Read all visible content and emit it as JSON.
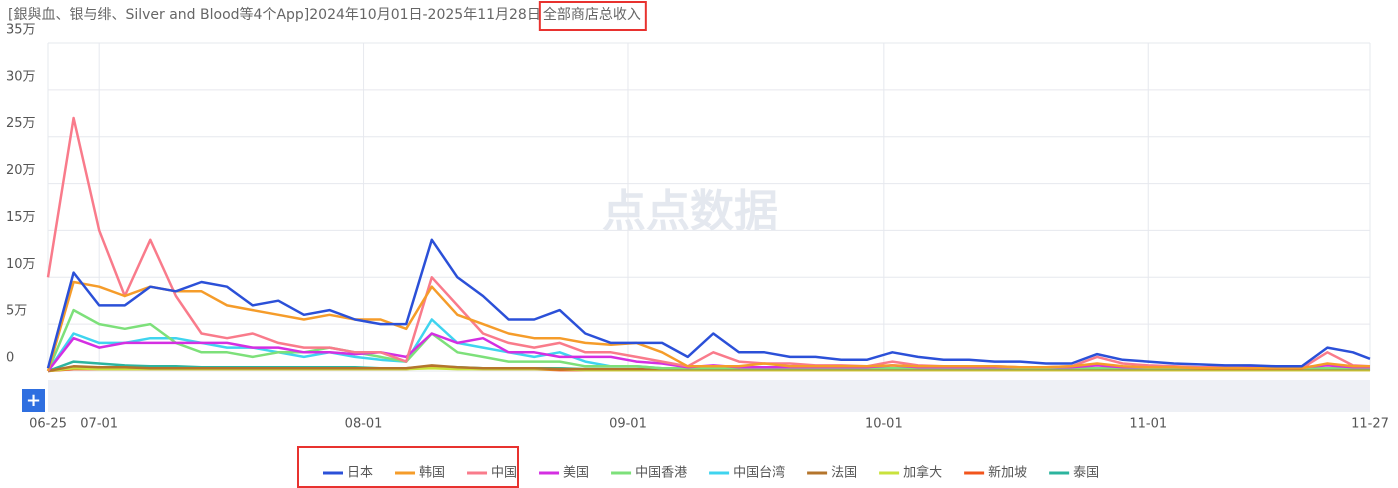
{
  "chart_data": {
    "type": "line",
    "title": "[銀與血、银与绯、Silver and Blood等4个App]2024年10月01日-2025年11月28日",
    "metric": "全部商店总收入",
    "watermark": "点点数据",
    "x": [
      0,
      3,
      6,
      9,
      12,
      15,
      18,
      21,
      24,
      27,
      30,
      33,
      36,
      39,
      42,
      45,
      48,
      51,
      54,
      57,
      60,
      63,
      66,
      69,
      72,
      75,
      78,
      81,
      84,
      87,
      90,
      93,
      96,
      99,
      102,
      105,
      108,
      111,
      114,
      117,
      120,
      123,
      126,
      129,
      132,
      135,
      138,
      141,
      144,
      147,
      150,
      153,
      155
    ],
    "xlim": [
      0,
      155
    ],
    "xticks": [
      {
        "value": 0,
        "label": "06-25"
      },
      {
        "value": 6,
        "label": "07-01"
      },
      {
        "value": 37,
        "label": "08-01"
      },
      {
        "value": 68,
        "label": "09-01"
      },
      {
        "value": 98,
        "label": "10-01"
      },
      {
        "value": 129,
        "label": "11-01"
      },
      {
        "value": 155,
        "label": "11-27"
      }
    ],
    "ylim": [
      0,
      35
    ],
    "yticks": [
      0,
      {
        "value": 5,
        "label": "5万"
      },
      {
        "value": 10,
        "label": "10万"
      },
      {
        "value": 15,
        "label": "15万"
      },
      {
        "value": 20,
        "label": "20万"
      },
      {
        "value": 25,
        "label": "25万"
      },
      {
        "value": 30,
        "label": "30万"
      },
      {
        "value": 35,
        "label": "35万"
      }
    ],
    "grid": true,
    "series": [
      {
        "name": "日本",
        "color": "#2b50d8",
        "values": [
          0.3,
          10.5,
          7,
          7,
          9,
          8.5,
          9.5,
          9,
          7,
          7.5,
          6,
          6.5,
          5.5,
          5,
          5,
          14,
          10,
          8,
          5.5,
          5.5,
          6.5,
          4,
          3,
          3,
          3,
          1.5,
          4,
          2,
          2,
          1.5,
          1.5,
          1.2,
          1.2,
          2,
          1.5,
          1.2,
          1.2,
          1,
          1,
          0.8,
          0.8,
          1.8,
          1.2,
          1,
          0.8,
          0.7,
          0.6,
          0.6,
          0.5,
          0.5,
          2.5,
          2,
          1.3
        ]
      },
      {
        "name": "韩国",
        "color": "#f59c2a",
        "values": [
          0,
          9.5,
          9,
          8,
          9,
          8.5,
          8.5,
          7,
          6.5,
          6,
          5.5,
          6,
          5.5,
          5.5,
          4.5,
          9,
          6,
          5,
          4,
          3.5,
          3.5,
          3,
          2.8,
          3,
          2,
          0.5,
          0.5,
          0.5,
          0.8,
          0.5,
          0.5,
          0.5,
          0.5,
          0.6,
          0.5,
          0.5,
          0.5,
          0.5,
          0.4,
          0.4,
          0.5,
          0.8,
          0.5,
          0.4,
          0.4,
          0.3,
          0.3,
          0.3,
          0.3,
          0.3,
          0.8,
          0.5,
          0.5
        ]
      },
      {
        "name": "中国",
        "color": "#f97b8b",
        "values": [
          10,
          27,
          15,
          8,
          14,
          8,
          4,
          3.5,
          4,
          3,
          2.5,
          2.5,
          2,
          2,
          1,
          10,
          7,
          4,
          3,
          2.5,
          3,
          2,
          2,
          1.5,
          1,
          0.5,
          2,
          1,
          0.8,
          0.8,
          0.6,
          0.6,
          0.5,
          1,
          0.6,
          0.5,
          0.5,
          0.5,
          0.4,
          0.4,
          0.5,
          1.5,
          0.8,
          0.6,
          0.5,
          0.4,
          0.4,
          0.3,
          0.3,
          0.3,
          2,
          0.6,
          0.5
        ]
      },
      {
        "name": "美国",
        "color": "#d42fe2",
        "values": [
          0,
          3.5,
          2.5,
          3,
          3,
          3,
          3,
          3,
          2.5,
          2.5,
          2,
          2,
          1.8,
          2,
          1.5,
          4,
          3,
          3.5,
          2,
          2,
          1.5,
          1.5,
          1.5,
          1,
          0.8,
          0.4,
          0.6,
          0.4,
          0.4,
          0.4,
          0.4,
          0.4,
          0.4,
          0.6,
          0.4,
          0.4,
          0.4,
          0.4,
          0.4,
          0.4,
          0.4,
          0.6,
          0.4,
          0.4,
          0.4,
          0.4,
          0.4,
          0.4,
          0.4,
          0.4,
          0.6,
          0.4,
          0.4
        ]
      },
      {
        "name": "中国香港",
        "color": "#7de07a",
        "values": [
          0,
          6.5,
          5,
          4.5,
          5,
          3,
          2,
          2,
          1.5,
          2,
          2,
          2.5,
          2,
          1.5,
          1,
          4,
          2,
          1.5,
          1,
          1,
          1,
          0.5,
          0.5,
          0.5,
          0.3,
          0.3,
          0.3,
          0.3,
          0.3,
          0.3,
          0.3,
          0.3,
          0.3,
          0.3,
          0.3,
          0.3,
          0.3,
          0.3,
          0.3,
          0.3,
          0.3,
          0.3,
          0.3,
          0.3,
          0.3,
          0.3,
          0.3,
          0.3,
          0.3,
          0.3,
          0.3,
          0.3,
          0.3
        ]
      },
      {
        "name": "中国台湾",
        "color": "#3fd4ef",
        "values": [
          0,
          4,
          3,
          3,
          3.5,
          3.5,
          3,
          2.5,
          2.5,
          2,
          1.5,
          2,
          1.5,
          1.2,
          1,
          5.5,
          3,
          2.5,
          2,
          1.5,
          2,
          1,
          0.5,
          0.5,
          0.3,
          0.3,
          0.3,
          0.3,
          0.3,
          0.3,
          0.3,
          0.3,
          0.3,
          0.3,
          0.3,
          0.3,
          0.3,
          0.3,
          0.3,
          0.3,
          0.3,
          0.3,
          0.3,
          0.3,
          0.3,
          0.3,
          0.3,
          0.3,
          0.3,
          0.3,
          0.3,
          0.3,
          0.3
        ]
      },
      {
        "name": "法国",
        "color": "#b4752c",
        "values": [
          0,
          0.5,
          0.4,
          0.4,
          0.3,
          0.3,
          0.3,
          0.3,
          0.3,
          0.3,
          0.3,
          0.3,
          0.3,
          0.3,
          0.3,
          0.6,
          0.4,
          0.3,
          0.3,
          0.3,
          0.2,
          0.2,
          0.2,
          0.2,
          0.2,
          0.2,
          0.2,
          0.2,
          0.2,
          0.2,
          0.2,
          0.2,
          0.2,
          0.2,
          0.2,
          0.2,
          0.2,
          0.2,
          0.2,
          0.2,
          0.2,
          0.2,
          0.2,
          0.2,
          0.2,
          0.2,
          0.2,
          0.2,
          0.2,
          0.2,
          0.2,
          0.2,
          0.2
        ]
      },
      {
        "name": "加拿大",
        "color": "#c9e23c",
        "values": [
          0,
          0.3,
          0.2,
          0.2,
          0.2,
          0.2,
          0.2,
          0.2,
          0.2,
          0.2,
          0.2,
          0.2,
          0.2,
          0.2,
          0.2,
          0.3,
          0.2,
          0.2,
          0.2,
          0.2,
          0.2,
          0.1,
          0.1,
          0.1,
          0.1,
          0.1,
          0.1,
          0.1,
          0.1,
          0.1,
          0.1,
          0.1,
          0.1,
          0.1,
          0.1,
          0.1,
          0.1,
          0.1,
          0.1,
          0.1,
          0.1,
          0.1,
          0.1,
          0.1,
          0.1,
          0.1,
          0.1,
          0.1,
          0.1,
          0.1,
          0.1,
          0.1,
          0.1
        ]
      },
      {
        "name": "新加坡",
        "color": "#f2551c",
        "values": [
          0,
          0.2,
          0.2,
          0.2,
          0.2,
          0.2,
          0.2,
          0.2,
          0.2,
          0.2,
          0.2,
          0.2,
          0.2,
          0.2,
          0.2,
          0.5,
          0.3,
          0.2,
          0.2,
          0.2,
          0.1,
          0.1,
          0.1,
          0.1,
          0.1,
          0.1,
          0.1,
          0.1,
          0.1,
          0.1,
          0.1,
          0.1,
          0.1,
          0.1,
          0.1,
          0.1,
          0.1,
          0.1,
          0.1,
          0.1,
          0.1,
          0.1,
          0.1,
          0.1,
          0.1,
          0.1,
          0.1,
          0.1,
          0.1,
          0.1,
          0.1,
          0.1,
          0.1
        ]
      },
      {
        "name": "泰国",
        "color": "#2cb49e",
        "values": [
          0,
          1,
          0.8,
          0.6,
          0.5,
          0.5,
          0.4,
          0.4,
          0.4,
          0.4,
          0.4,
          0.4,
          0.4,
          0.3,
          0.3,
          0.5,
          0.4,
          0.3,
          0.3,
          0.3,
          0.3,
          0.2,
          0.2,
          0.2,
          0.2,
          0.2,
          0.2,
          0.2,
          0.2,
          0.2,
          0.2,
          0.2,
          0.2,
          0.2,
          0.2,
          0.2,
          0.2,
          0.2,
          0.2,
          0.2,
          0.2,
          0.2,
          0.2,
          0.2,
          0.2,
          0.2,
          0.2,
          0.2,
          0.2,
          0.2,
          0.2,
          0.2,
          0.2
        ]
      }
    ]
  }
}
